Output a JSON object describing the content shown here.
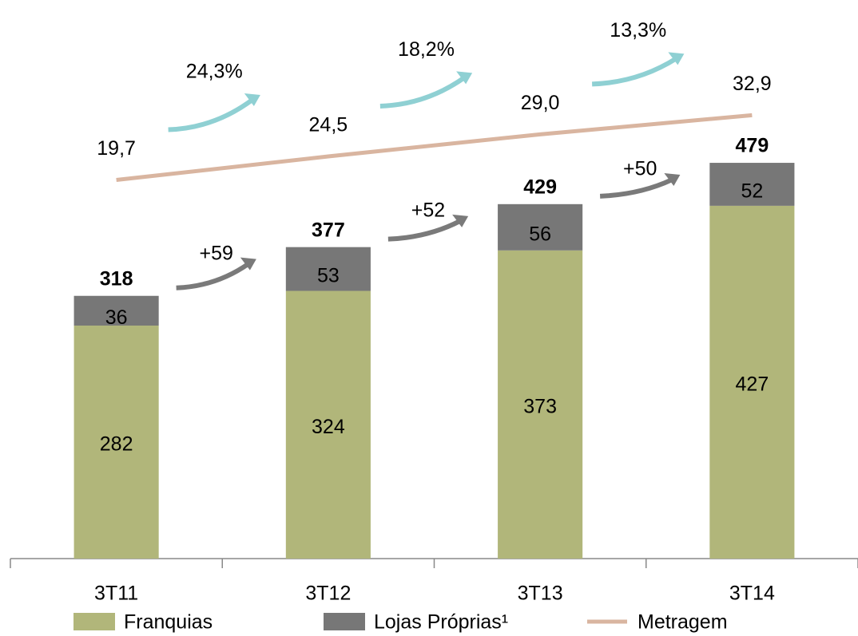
{
  "chart_data": {
    "type": "bar",
    "stacked": true,
    "categories": [
      "3T11",
      "3T12",
      "3T13",
      "3T14"
    ],
    "series": [
      {
        "name": "Franquias",
        "color": "#b1b67a",
        "values": [
          282,
          324,
          373,
          427
        ]
      },
      {
        "name": "Lojas Próprias¹",
        "color": "#777777",
        "values": [
          36,
          53,
          56,
          52
        ]
      },
      {
        "name": "Metragem",
        "type": "line",
        "axis": "y2",
        "color": "#d9b5a0",
        "values": [
          19.7,
          24.5,
          29.0,
          32.9
        ],
        "value_labels": [
          "19,7",
          "24,5",
          "29,0",
          "32,9"
        ]
      }
    ],
    "totals": [
      318,
      377,
      429,
      479
    ],
    "growth_labels": [
      "+59",
      "+52",
      "+50"
    ],
    "line_growth_labels": [
      "24,3%",
      "18,2%",
      "13,3%"
    ],
    "ylim": [
      0,
      650
    ],
    "y2lim": [
      -57.5,
      52
    ]
  }
}
